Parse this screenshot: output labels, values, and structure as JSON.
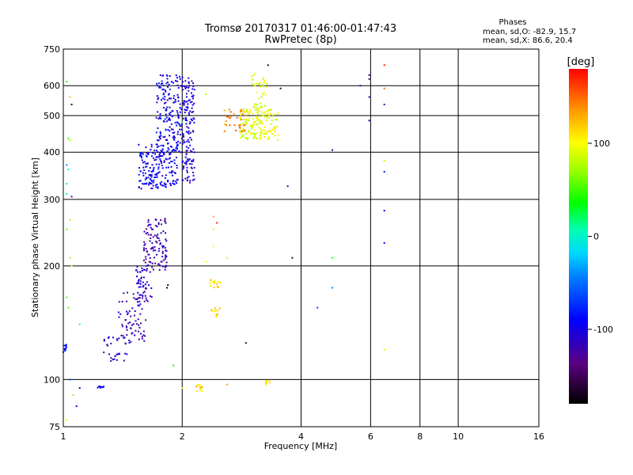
{
  "chart_data": {
    "type": "scatter",
    "title": "Tromsø 20170317 01:46:00-01:47:43",
    "subtitle": "RwPretec (8p)",
    "phases": {
      "heading": "Phases",
      "line_o": "mean, sd,O: -82.9, 15.7",
      "line_x": "mean, sd,X:  86.6, 20.4"
    },
    "xlabel": "Frequency [MHz]",
    "ylabel": "Stationary phase Virtual Height [km]",
    "x_scale": "log2",
    "y_scale": "log",
    "xlim": [
      1,
      16
    ],
    "ylim": [
      75,
      750
    ],
    "x_ticks": [
      1,
      2,
      4,
      6,
      8,
      10,
      16
    ],
    "y_ticks": [
      75,
      100,
      200,
      300,
      400,
      500,
      600,
      750
    ],
    "grid": true,
    "colorbar": {
      "label": "[deg]",
      "range": [
        -180,
        180
      ],
      "ticks": [
        100,
        0,
        -100
      ]
    },
    "clusters": [
      {
        "x": [
          1.25,
          1.45
        ],
        "y": [
          112,
          130
        ],
        "phase": -110,
        "count": 30
      },
      {
        "x": [
          1.38,
          1.62
        ],
        "y": [
          125,
          170
        ],
        "phase": -115,
        "count": 70
      },
      {
        "x": [
          1.52,
          1.68
        ],
        "y": [
          160,
          200
        ],
        "phase": -110,
        "count": 50
      },
      {
        "x": [
          1.6,
          1.83
        ],
        "y": [
          195,
          270
        ],
        "phase": -120,
        "count": 110
      },
      {
        "x": [
          1.55,
          1.95
        ],
        "y": [
          320,
          420
        ],
        "phase": -95,
        "count": 200
      },
      {
        "x": [
          1.72,
          1.98
        ],
        "y": [
          400,
          640
        ],
        "phase": -95,
        "count": 160
      },
      {
        "x": [
          1.98,
          2.15
        ],
        "y": [
          330,
          640
        ],
        "phase": -105,
        "count": 150
      },
      {
        "x": [
          1.0,
          1.02
        ],
        "y": [
          117,
          125
        ],
        "phase": -80,
        "count": 12
      },
      {
        "x": [
          1.22,
          1.27
        ],
        "y": [
          95,
          96
        ],
        "phase": -90,
        "count": 10
      },
      {
        "x": [
          2.8,
          3.5
        ],
        "y": [
          430,
          520
        ],
        "phase": 95,
        "count": 160
      },
      {
        "x": [
          3.0,
          3.3
        ],
        "y": [
          520,
          650
        ],
        "phase": 90,
        "count": 40
      },
      {
        "x": [
          2.55,
          2.9
        ],
        "y": [
          450,
          520
        ],
        "phase": 140,
        "count": 35
      },
      {
        "x": [
          2.35,
          2.5
        ],
        "y": [
          175,
          185
        ],
        "phase": 110,
        "count": 15
      },
      {
        "x": [
          2.35,
          2.5
        ],
        "y": [
          145,
          155
        ],
        "phase": 115,
        "count": 15
      },
      {
        "x": [
          2.15,
          2.25
        ],
        "y": [
          93,
          97
        ],
        "phase": 115,
        "count": 15
      },
      {
        "x": [
          3.25,
          3.35
        ],
        "y": [
          97,
          100
        ],
        "phase": 105,
        "count": 8
      }
    ],
    "points": [
      {
        "x": 1.84,
        "y": 178,
        "phase": -165
      },
      {
        "x": 1.83,
        "y": 175,
        "phase": -170
      },
      {
        "x": 3.55,
        "y": 590,
        "phase": -160
      },
      {
        "x": 3.3,
        "y": 680,
        "phase": -160
      },
      {
        "x": 2.9,
        "y": 125,
        "phase": -150
      },
      {
        "x": 3.8,
        "y": 210,
        "phase": -160
      },
      {
        "x": 3.7,
        "y": 325,
        "phase": -120
      },
      {
        "x": 4.8,
        "y": 405,
        "phase": -115
      },
      {
        "x": 4.4,
        "y": 155,
        "phase": -70
      },
      {
        "x": 4.8,
        "y": 175,
        "phase": -40
      },
      {
        "x": 4.8,
        "y": 210,
        "phase": 40
      },
      {
        "x": 5.65,
        "y": 600,
        "phase": -130
      },
      {
        "x": 5.95,
        "y": 640,
        "phase": -120
      },
      {
        "x": 5.95,
        "y": 625,
        "phase": -130
      },
      {
        "x": 5.95,
        "y": 560,
        "phase": -110
      },
      {
        "x": 5.95,
        "y": 485,
        "phase": -110
      },
      {
        "x": 6.5,
        "y": 680,
        "phase": 170
      },
      {
        "x": 6.5,
        "y": 590,
        "phase": 150
      },
      {
        "x": 6.5,
        "y": 535,
        "phase": -130
      },
      {
        "x": 6.5,
        "y": 380,
        "phase": 80
      },
      {
        "x": 6.5,
        "y": 355,
        "phase": -80
      },
      {
        "x": 6.5,
        "y": 280,
        "phase": -90
      },
      {
        "x": 6.5,
        "y": 230,
        "phase": -85
      },
      {
        "x": 6.5,
        "y": 120,
        "phase": 85
      },
      {
        "x": 1.02,
        "y": 615,
        "phase": 40
      },
      {
        "x": 1.04,
        "y": 560,
        "phase": 120
      },
      {
        "x": 1.05,
        "y": 535,
        "phase": -160
      },
      {
        "x": 1.03,
        "y": 435,
        "phase": 50
      },
      {
        "x": 1.04,
        "y": 430,
        "phase": 80
      },
      {
        "x": 1.02,
        "y": 370,
        "phase": -40
      },
      {
        "x": 1.03,
        "y": 360,
        "phase": 10
      },
      {
        "x": 1.02,
        "y": 330,
        "phase": 20
      },
      {
        "x": 1.02,
        "y": 310,
        "phase": 5
      },
      {
        "x": 1.05,
        "y": 305,
        "phase": -120
      },
      {
        "x": 1.04,
        "y": 265,
        "phase": 80
      },
      {
        "x": 1.02,
        "y": 250,
        "phase": 60
      },
      {
        "x": 1.04,
        "y": 210,
        "phase": 70
      },
      {
        "x": 1.05,
        "y": 200,
        "phase": 100
      },
      {
        "x": 1.02,
        "y": 165,
        "phase": 50
      },
      {
        "x": 1.03,
        "y": 155,
        "phase": 60
      },
      {
        "x": 1.02,
        "y": 78,
        "phase": 90
      },
      {
        "x": 1.04,
        "y": 100,
        "phase": -60
      },
      {
        "x": 1.06,
        "y": 91,
        "phase": 70
      },
      {
        "x": 1.1,
        "y": 95,
        "phase": -100
      },
      {
        "x": 1.08,
        "y": 85,
        "phase": -90
      },
      {
        "x": 1.1,
        "y": 140,
        "phase": 10
      },
      {
        "x": 2.0,
        "y": 480,
        "phase": 10
      },
      {
        "x": 1.9,
        "y": 109,
        "phase": 40
      },
      {
        "x": 2.0,
        "y": 95,
        "phase": 100
      },
      {
        "x": 2.4,
        "y": 270,
        "phase": 130
      },
      {
        "x": 2.45,
        "y": 260,
        "phase": 170
      },
      {
        "x": 2.4,
        "y": 250,
        "phase": 90
      },
      {
        "x": 2.4,
        "y": 225,
        "phase": 100
      },
      {
        "x": 2.6,
        "y": 210,
        "phase": 110
      },
      {
        "x": 2.3,
        "y": 205,
        "phase": 100
      },
      {
        "x": 2.3,
        "y": 570,
        "phase": 80
      },
      {
        "x": 2.6,
        "y": 97,
        "phase": 130
      }
    ]
  }
}
